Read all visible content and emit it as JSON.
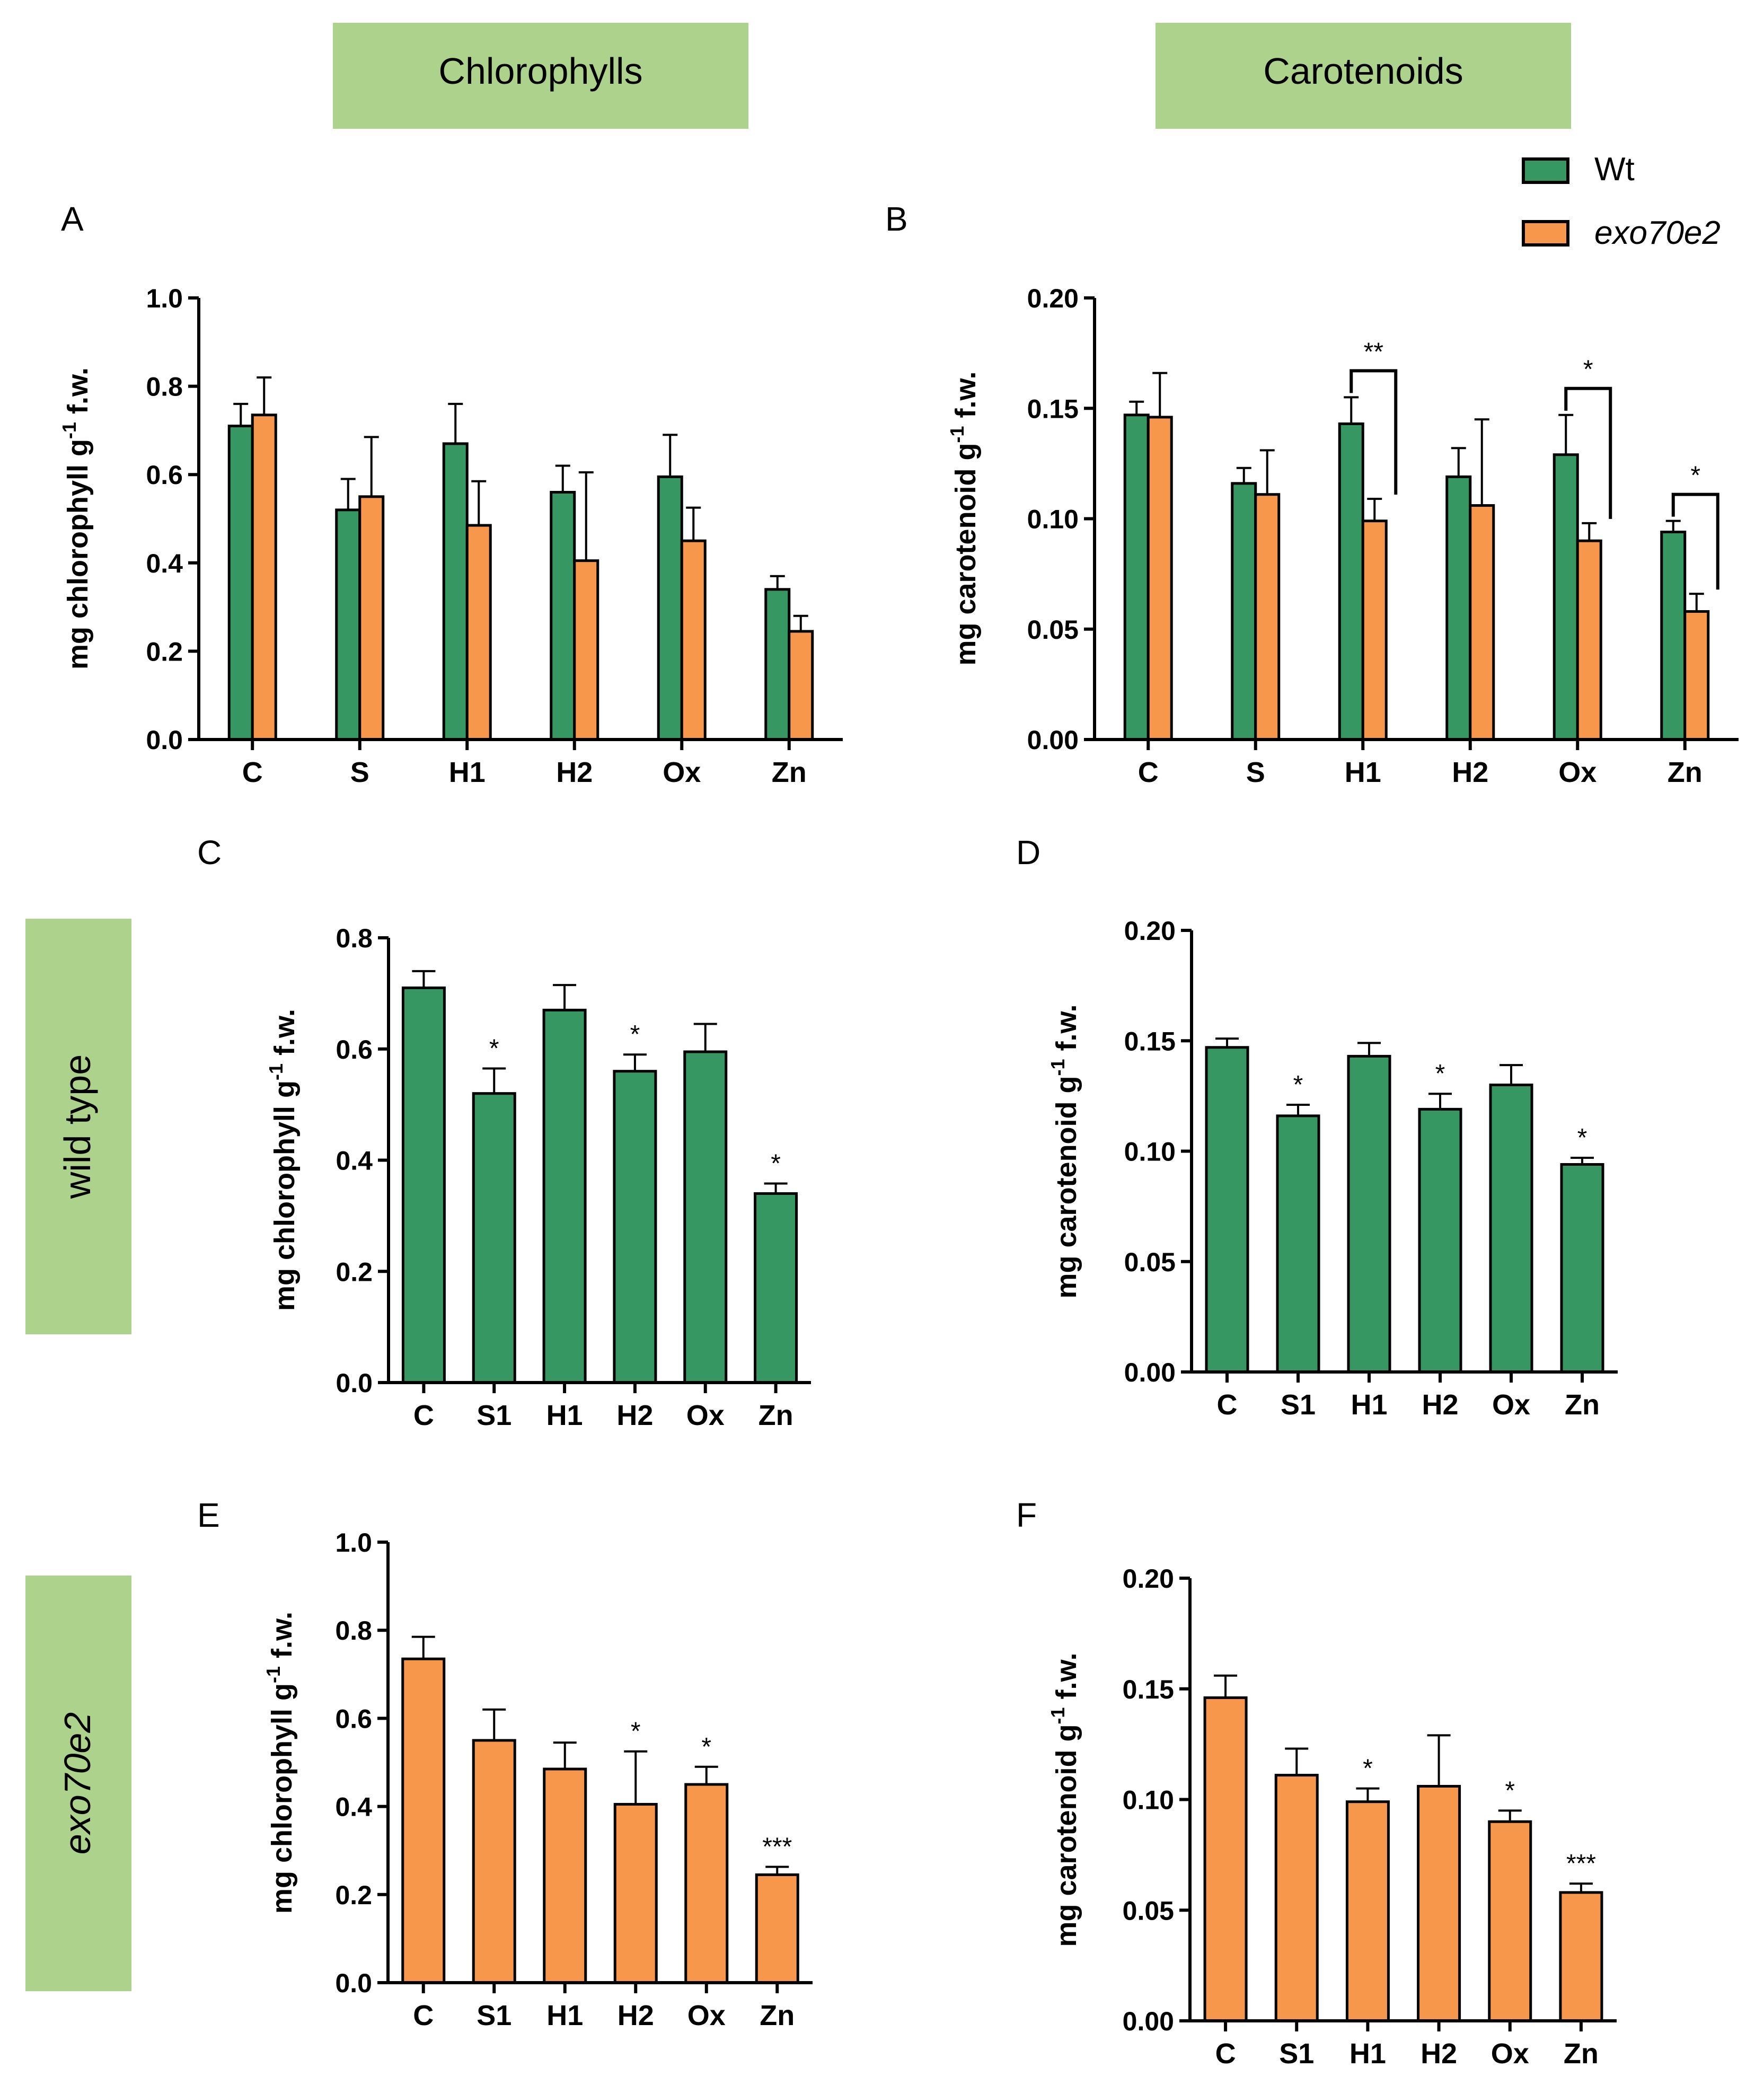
{
  "headers": {
    "col_left": "Chlorophylls",
    "col_right": "Carotenoids",
    "row_top": "wild type",
    "row_bottom": "exo70e2"
  },
  "legend": [
    {
      "label": "Wt",
      "color": "#379763"
    },
    {
      "label": "exo70e2",
      "color": "#f6974c"
    }
  ],
  "colors": {
    "header_bg": "#acd28c",
    "wt": "#379763",
    "mut": "#f6974c"
  },
  "chart_data": [
    {
      "id": "A",
      "type": "bar",
      "panel_label": "A",
      "ylabel": "mg chlorophyll g-1 f.w.",
      "ylim": [
        0,
        1.0
      ],
      "yticks": [
        "0.0",
        "0.2",
        "0.4",
        "0.6",
        "0.8",
        "1.0"
      ],
      "categories": [
        "C",
        "S",
        "H1",
        "H2",
        "Ox",
        "Zn"
      ],
      "series": [
        {
          "name": "Wt",
          "values": [
            0.71,
            0.52,
            0.67,
            0.56,
            0.595,
            0.34
          ],
          "errors": [
            0.05,
            0.07,
            0.09,
            0.06,
            0.095,
            0.03
          ]
        },
        {
          "name": "exo70e2",
          "values": [
            0.735,
            0.55,
            0.485,
            0.405,
            0.45,
            0.245
          ],
          "errors": [
            0.085,
            0.135,
            0.1,
            0.2,
            0.075,
            0.035
          ]
        }
      ],
      "annotations": []
    },
    {
      "id": "B",
      "type": "bar",
      "panel_label": "B",
      "ylabel": "mg carotenoid g-1 f.w.",
      "ylim": [
        0,
        0.2
      ],
      "yticks": [
        "0.00",
        "0.05",
        "0.10",
        "0.15",
        "0.20"
      ],
      "categories": [
        "C",
        "S",
        "H1",
        "H2",
        "Ox",
        "Zn"
      ],
      "series": [
        {
          "name": "Wt",
          "values": [
            0.147,
            0.116,
            0.143,
            0.119,
            0.129,
            0.094
          ],
          "errors": [
            0.006,
            0.007,
            0.012,
            0.013,
            0.018,
            0.005
          ]
        },
        {
          "name": "exo70e2",
          "values": [
            0.146,
            0.111,
            0.099,
            0.106,
            0.09,
            0.058
          ],
          "errors": [
            0.02,
            0.02,
            0.01,
            0.039,
            0.008,
            0.008
          ]
        }
      ],
      "annotations": [
        {
          "category": 2,
          "text": "**"
        },
        {
          "category": 4,
          "text": "*"
        },
        {
          "category": 5,
          "text": "*"
        }
      ]
    },
    {
      "id": "C",
      "type": "bar",
      "panel_label": "C",
      "ylabel": "mg chlorophyll g-1 f.w.",
      "ylim": [
        0,
        0.8
      ],
      "yticks": [
        "0.0",
        "0.2",
        "0.4",
        "0.6",
        "0.8"
      ],
      "categories": [
        "C",
        "S1",
        "H1",
        "H2",
        "Ox",
        "Zn"
      ],
      "series": [
        {
          "name": "Wt",
          "values": [
            0.71,
            0.52,
            0.67,
            0.56,
            0.595,
            0.34
          ],
          "errors": [
            0.03,
            0.045,
            0.045,
            0.03,
            0.05,
            0.018
          ]
        }
      ],
      "significance": [
        "",
        "*",
        "",
        "*",
        "",
        "*"
      ]
    },
    {
      "id": "D",
      "type": "bar",
      "panel_label": "D",
      "ylabel": "mg carotenoid g-1 f.w.",
      "ylim": [
        0,
        0.2
      ],
      "yticks": [
        "0.00",
        "0.05",
        "0.10",
        "0.15",
        "0.20"
      ],
      "categories": [
        "C",
        "S1",
        "H1",
        "H2",
        "Ox",
        "Zn"
      ],
      "series": [
        {
          "name": "Wt",
          "values": [
            0.147,
            0.116,
            0.143,
            0.119,
            0.13,
            0.094
          ],
          "errors": [
            0.004,
            0.005,
            0.006,
            0.007,
            0.009,
            0.003
          ]
        }
      ],
      "significance": [
        "",
        "*",
        "",
        "*",
        "",
        "*"
      ]
    },
    {
      "id": "E",
      "type": "bar",
      "panel_label": "E",
      "ylabel": "mg chlorophyll g-1 f.w.",
      "ylim": [
        0,
        1.0
      ],
      "yticks": [
        "0.0",
        "0.2",
        "0.4",
        "0.6",
        "0.8",
        "1.0"
      ],
      "categories": [
        "C",
        "S1",
        "H1",
        "H2",
        "Ox",
        "Zn"
      ],
      "series": [
        {
          "name": "exo70e2",
          "values": [
            0.735,
            0.55,
            0.485,
            0.405,
            0.45,
            0.245
          ],
          "errors": [
            0.05,
            0.07,
            0.06,
            0.12,
            0.04,
            0.018
          ]
        }
      ],
      "significance": [
        "",
        "",
        "",
        "*",
        "*",
        "***"
      ]
    },
    {
      "id": "F",
      "type": "bar",
      "panel_label": "F",
      "ylabel": "mg carotenoid g-1 f.w.",
      "ylim": [
        0,
        0.2
      ],
      "yticks": [
        "0.00",
        "0.05",
        "0.10",
        "0.15",
        "0.20"
      ],
      "categories": [
        "C",
        "S1",
        "H1",
        "H2",
        "Ox",
        "Zn"
      ],
      "series": [
        {
          "name": "exo70e2",
          "values": [
            0.146,
            0.111,
            0.099,
            0.106,
            0.09,
            0.058
          ],
          "errors": [
            0.01,
            0.012,
            0.006,
            0.023,
            0.005,
            0.004
          ]
        }
      ],
      "significance": [
        "",
        "",
        "*",
        "",
        "*",
        "***"
      ]
    }
  ]
}
